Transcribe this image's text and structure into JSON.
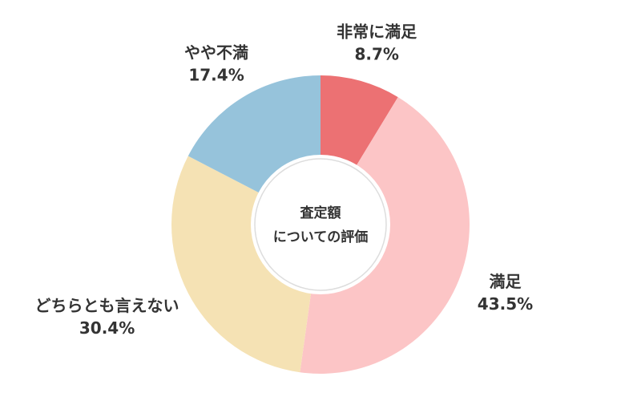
{
  "chart_data": {
    "type": "donut",
    "center_text": [
      "査定額",
      "についての評価"
    ],
    "categories": [
      "非常に満足",
      "満足",
      "どちらとも言えない",
      "やや不満"
    ],
    "values": [
      8.7,
      43.5,
      30.4,
      17.4
    ],
    "value_labels": [
      "8.7%",
      "43.5%",
      "30.4%",
      "17.4%"
    ],
    "colors": [
      "#ec7173",
      "#fcc5c6",
      "#f5e2b4",
      "#96c3db"
    ]
  }
}
